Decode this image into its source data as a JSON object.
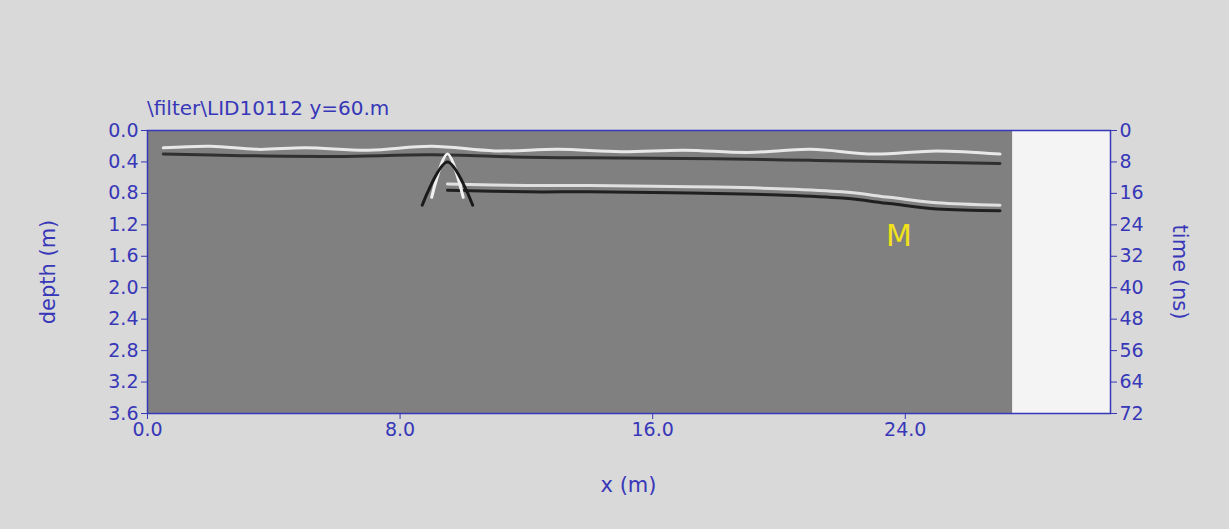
{
  "chart_data": {
    "type": "radargram",
    "title": "\\filter\\LID10112   y=60.m",
    "x_label": "x (m)",
    "y_label": "depth (m)",
    "y2_label": "time (ns)",
    "xlim": [
      0,
      30.5
    ],
    "xticks": [
      {
        "value": 0,
        "label": "0.0"
      },
      {
        "value": 8,
        "label": "8.0"
      },
      {
        "value": 16,
        "label": "16.0"
      },
      {
        "value": 24,
        "label": "24.0"
      }
    ],
    "ylim": [
      0,
      3.6
    ],
    "yticks": [
      {
        "value": 0,
        "label": "0.0"
      },
      {
        "value": 0.4,
        "label": "0.4"
      },
      {
        "value": 0.8,
        "label": "0.8"
      },
      {
        "value": 1.2,
        "label": "1.2"
      },
      {
        "value": 1.6,
        "label": "1.6"
      },
      {
        "value": 2.0,
        "label": "2.0"
      },
      {
        "value": 2.4,
        "label": "2.4"
      },
      {
        "value": 2.8,
        "label": "2.8"
      },
      {
        "value": 3.2,
        "label": "3.2"
      },
      {
        "value": 3.6,
        "label": "3.6"
      }
    ],
    "y2lim": [
      0,
      72
    ],
    "y2ticks": [
      0,
      8,
      16,
      24,
      32,
      40,
      48,
      56,
      64,
      72
    ],
    "profile_x": [
      0,
      27.4
    ],
    "color": "#808080",
    "reflectors": [
      {
        "color": "#e8e8e8",
        "x": [
          0.5,
          2,
          3.5,
          5,
          7,
          9,
          11,
          13,
          15,
          17,
          19,
          21,
          23,
          25,
          27
        ],
        "depth": [
          0.22,
          0.2,
          0.24,
          0.22,
          0.25,
          0.2,
          0.26,
          0.24,
          0.27,
          0.25,
          0.28,
          0.24,
          0.3,
          0.26,
          0.3
        ]
      },
      {
        "color": "#303030",
        "x": [
          0.5,
          3,
          6,
          9,
          12,
          15,
          18,
          21,
          24,
          27
        ],
        "depth": [
          0.3,
          0.32,
          0.33,
          0.31,
          0.34,
          0.35,
          0.36,
          0.38,
          0.4,
          0.42
        ]
      },
      {
        "color": "#e0e0e0",
        "x": [
          9.5,
          12,
          14,
          16,
          18,
          20,
          22,
          23.5,
          25,
          27
        ],
        "depth": [
          0.68,
          0.7,
          0.7,
          0.71,
          0.72,
          0.74,
          0.78,
          0.85,
          0.92,
          0.95
        ]
      },
      {
        "color": "#202020",
        "x": [
          9.5,
          12,
          14,
          16,
          18,
          20,
          22,
          23.5,
          25,
          27
        ],
        "depth": [
          0.76,
          0.78,
          0.78,
          0.79,
          0.8,
          0.82,
          0.86,
          0.93,
          1.0,
          1.02
        ]
      },
      {
        "color": "#f0f0f0",
        "x": [
          9.0,
          9.5,
          10.0
        ],
        "depth": [
          0.85,
          0.3,
          0.85
        ]
      },
      {
        "color": "#1a1a1a",
        "x": [
          8.7,
          9.5,
          10.3
        ],
        "depth": [
          0.95,
          0.4,
          0.95
        ]
      }
    ],
    "annotations": [
      {
        "text": "M",
        "x": 23.8,
        "depth": 1.35,
        "color": "#f2e21a"
      }
    ]
  }
}
